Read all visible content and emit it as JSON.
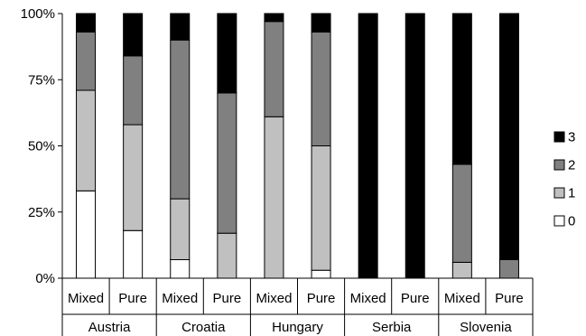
{
  "chart_data": {
    "type": "bar",
    "stacked": true,
    "normalized": true,
    "title": "",
    "xlabel": "",
    "ylabel": "",
    "ylim": [
      0,
      100
    ],
    "yticks": [
      "0%",
      "25%",
      "50%",
      "75%",
      "100%"
    ],
    "grid": false,
    "legend_position": "right",
    "groups": [
      "Austria",
      "Croatia",
      "Hungary",
      "Serbia",
      "Slovenia"
    ],
    "subcategories": [
      "Mixed",
      "Pure"
    ],
    "categories": [
      "Austria Mixed",
      "Austria Pure",
      "Croatia Mixed",
      "Croatia Pure",
      "Hungary Mixed",
      "Hungary Pure",
      "Serbia Mixed",
      "Serbia Pure",
      "Slovenia Mixed",
      "Slovenia Pure"
    ],
    "series": [
      {
        "name": "0",
        "color": "#ffffff",
        "values": [
          33,
          18,
          7,
          0,
          0,
          3,
          0,
          0,
          0,
          0
        ]
      },
      {
        "name": "1",
        "color": "#c0c0c0",
        "values": [
          38,
          40,
          23,
          17,
          61,
          47,
          0,
          0,
          6,
          0
        ]
      },
      {
        "name": "2",
        "color": "#808080",
        "values": [
          22,
          26,
          60,
          53,
          36,
          43,
          0,
          0,
          37,
          7
        ]
      },
      {
        "name": "3",
        "color": "#000000",
        "values": [
          7,
          16,
          10,
          30,
          3,
          7,
          100,
          100,
          57,
          93
        ]
      }
    ],
    "legend_order": [
      "3",
      "2",
      "1",
      "0"
    ]
  }
}
